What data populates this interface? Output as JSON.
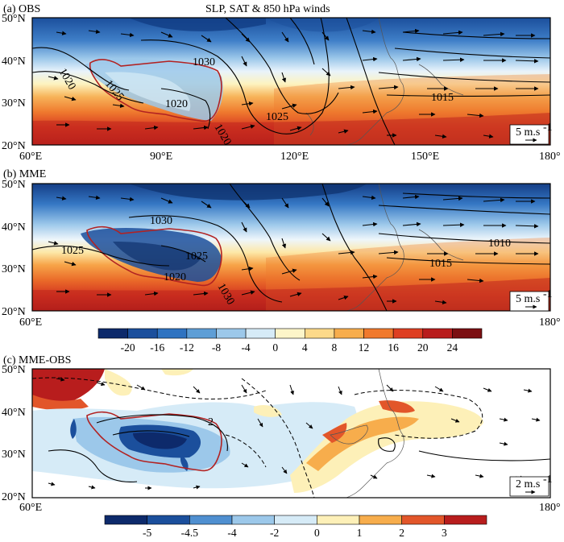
{
  "figure_title": "SLP, SAT & 850 hPa winds",
  "lat_labels": [
    "50°N",
    "40°N",
    "30°N",
    "20°N"
  ],
  "lon_labels": [
    "60°E",
    "90°E",
    "120°E",
    "150°E",
    "180°"
  ],
  "panels": [
    {
      "id": "a",
      "label": "(a) OBS",
      "vector_key": "5 m.s",
      "vector_key_sup": "-1",
      "contour_labels": [
        "1030",
        "1020",
        "1025",
        "1020",
        "1015",
        "1020",
        "1025"
      ]
    },
    {
      "id": "b",
      "label": "(b) MME",
      "vector_key": "5 m.s",
      "vector_key_sup": "-1",
      "contour_labels": [
        "1030",
        "1025",
        "1025",
        "1020",
        "1010",
        "1015",
        "1030"
      ]
    },
    {
      "id": "c",
      "label": "(c) MME-OBS",
      "vector_key": "2 m.s",
      "vector_key_sup": "-1",
      "contour_labels": [
        "2"
      ]
    }
  ],
  "colorbar_top": {
    "labels": [
      "-20",
      "-16",
      "-12",
      "-8",
      "-4",
      "0",
      "4",
      "8",
      "12",
      "16",
      "20",
      "24"
    ],
    "colors": [
      "#0d2a6b",
      "#1b4f9c",
      "#2f73c1",
      "#5e9ed6",
      "#9cc8ea",
      "#d6ebf7",
      "#fdf5c9",
      "#fcd98a",
      "#f7ad4c",
      "#f0792c",
      "#de3f22",
      "#b81d1d",
      "#7b0f12"
    ]
  },
  "colorbar_bottom": {
    "labels": [
      "-5",
      "-4.5",
      "-4",
      "-2",
      "0",
      "1",
      "2",
      "3"
    ],
    "colors": [
      "#0d2a6b",
      "#1b4f9c",
      "#4f8fd0",
      "#9cc8ea",
      "#d6ebf7",
      "#fdf0b8",
      "#f7ad4c",
      "#e2562a",
      "#b81d1d"
    ]
  },
  "scheme": {
    "sat_warm": "#c0241e",
    "sat_cold": "#1b4f9c",
    "plateau_outline": "#b22222"
  }
}
